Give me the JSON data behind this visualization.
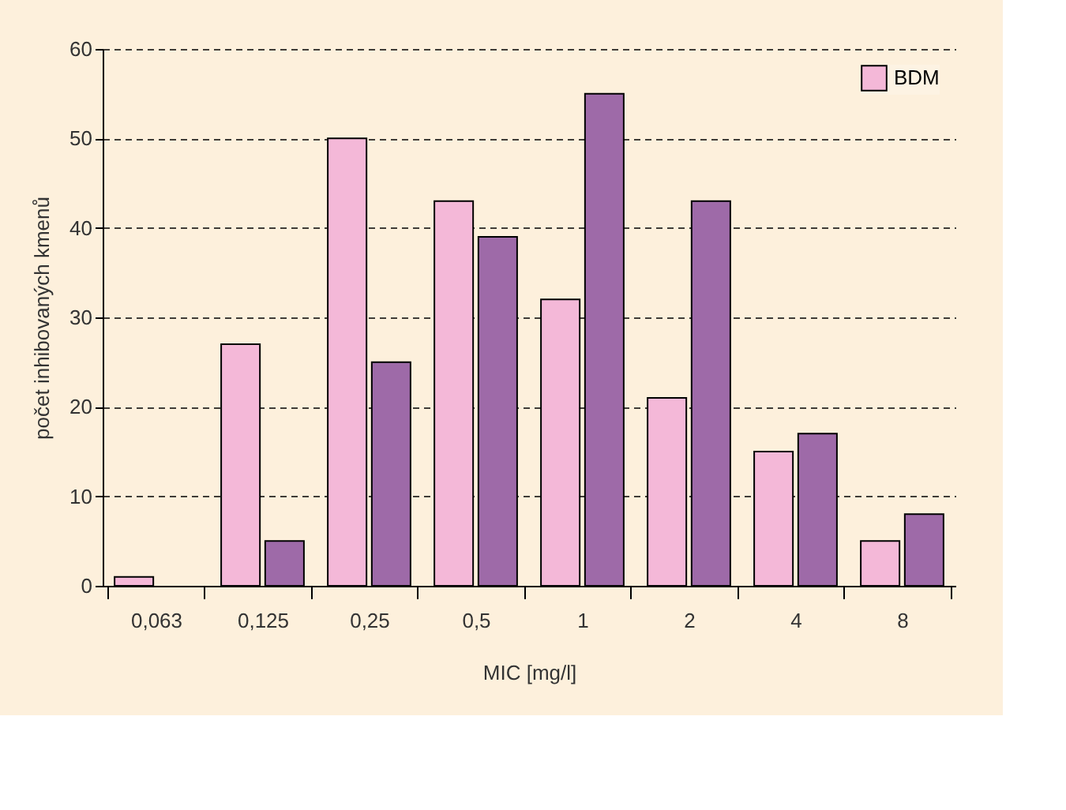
{
  "chart_data": {
    "type": "bar",
    "xlabel": "MIC [mg/l]",
    "ylabel": "počet inhibovaných kmenů",
    "categories": [
      "0,063",
      "0,125",
      "0,25",
      "0,5",
      "1",
      "2",
      "4",
      "8"
    ],
    "series": [
      {
        "name": "BDM",
        "color": "#f4b8d8",
        "values": [
          1,
          27,
          50,
          43,
          32,
          21,
          15,
          5
        ]
      },
      {
        "color": "#9e6aa8",
        "values": [
          null,
          5,
          25,
          39,
          55,
          43,
          17,
          8
        ]
      }
    ],
    "ylim": [
      0,
      60
    ],
    "yticks": [
      0,
      10,
      20,
      30,
      40,
      50,
      60
    ],
    "grid": "y",
    "legend": "top right"
  }
}
